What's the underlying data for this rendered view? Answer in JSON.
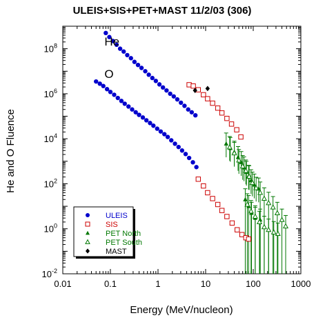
{
  "chart_data": {
    "type": "scatter",
    "title": "ULEIS+SIS+PET+MAST 11/2/03 (306)",
    "xlabel": "Energy (MeV/nucleon)",
    "ylabel": "He and O Fluence",
    "x_scale": "log",
    "y_scale": "log",
    "xlim": [
      0.01,
      1000
    ],
    "ylim": [
      0.01,
      1000000000
    ],
    "x_ticks": [
      {
        "value": 0.01,
        "label": "0.01"
      },
      {
        "value": 0.1,
        "label": "0.1"
      },
      {
        "value": 1,
        "label": "1"
      },
      {
        "value": 10,
        "label": "10"
      },
      {
        "value": 100,
        "label": "100"
      },
      {
        "value": 1000,
        "label": "1000"
      }
    ],
    "y_ticks": [
      {
        "value": 0.01,
        "base": "10",
        "exp": "-2"
      },
      {
        "value": 1,
        "base": "10",
        "exp": "0"
      },
      {
        "value": 100,
        "base": "10",
        "exp": "2"
      },
      {
        "value": 10000,
        "base": "10",
        "exp": "4"
      },
      {
        "value": 1000000,
        "base": "10",
        "exp": "6"
      },
      {
        "value": 100000000,
        "base": "10",
        "exp": "8"
      }
    ],
    "annotations": [
      {
        "text": "He",
        "x": 0.075,
        "y": 140000000
      },
      {
        "text": "O",
        "x": 0.075,
        "y": 5000000
      }
    ],
    "legend": {
      "position": "bottom-left"
    },
    "series": [
      {
        "name": "ULEIS",
        "color": "#0000cc",
        "marker": "filled-circle",
        "points": [
          [
            0.08,
            500000000
          ],
          [
            0.095,
            330000000
          ],
          [
            0.113,
            220000000
          ],
          [
            0.135,
            150000000
          ],
          [
            0.16,
            100000000
          ],
          [
            0.19,
            75000000
          ],
          [
            0.226,
            52000000
          ],
          [
            0.27,
            38000000
          ],
          [
            0.32,
            26000000
          ],
          [
            0.38,
            19000000
          ],
          [
            0.45,
            14000000
          ],
          [
            0.54,
            10000000
          ],
          [
            0.64,
            7000000
          ],
          [
            0.76,
            5000000
          ],
          [
            0.9,
            3700000
          ],
          [
            1.07,
            2600000
          ],
          [
            1.27,
            1900000
          ],
          [
            1.51,
            1400000
          ],
          [
            1.8,
            1000000
          ],
          [
            2.14,
            760000
          ],
          [
            2.54,
            560000
          ],
          [
            3.03,
            400000
          ],
          [
            3.6,
            290000
          ],
          [
            4.3,
            200000
          ],
          [
            5.1,
            150000
          ],
          [
            6.1,
            110000
          ],
          [
            0.05,
            3500000
          ],
          [
            0.06,
            2800000
          ],
          [
            0.071,
            2200000
          ],
          [
            0.085,
            1600000
          ],
          [
            0.1,
            1200000
          ],
          [
            0.12,
            900000
          ],
          [
            0.143,
            650000
          ],
          [
            0.17,
            480000
          ],
          [
            0.2,
            360000
          ],
          [
            0.24,
            270000
          ],
          [
            0.286,
            200000
          ],
          [
            0.34,
            150000
          ],
          [
            0.4,
            115000
          ],
          [
            0.48,
            88000
          ],
          [
            0.57,
            66000
          ],
          [
            0.68,
            50000
          ],
          [
            0.8,
            38000
          ],
          [
            0.96,
            28000
          ],
          [
            1.14,
            21000
          ],
          [
            1.36,
            16000
          ],
          [
            1.6,
            12000
          ],
          [
            1.9,
            8500
          ],
          [
            2.27,
            6000
          ],
          [
            2.7,
            4300
          ],
          [
            3.2,
            3000
          ],
          [
            3.8,
            2100
          ],
          [
            4.5,
            1400
          ],
          [
            5.4,
            900
          ],
          [
            6.4,
            550
          ]
        ]
      },
      {
        "name": "SIS",
        "color": "#cc0000",
        "marker": "open-square",
        "points": [
          [
            4.5,
            2500000
          ],
          [
            5.5,
            2200000
          ],
          [
            7,
            1500000
          ],
          [
            9,
            900000
          ],
          [
            11,
            600000
          ],
          [
            14,
            380000
          ],
          [
            18,
            230000
          ],
          [
            22,
            140000
          ],
          [
            28,
            80000
          ],
          [
            35,
            45000
          ],
          [
            45,
            25000
          ],
          [
            55,
            12000
          ],
          [
            7,
            160
          ],
          [
            9,
            80
          ],
          [
            11,
            40
          ],
          [
            14,
            22
          ],
          [
            18,
            12
          ],
          [
            22,
            6.5
          ],
          [
            28,
            3.5
          ],
          [
            36,
            1.8
          ],
          [
            46,
            0.9
          ],
          [
            58,
            0.55
          ],
          [
            70,
            0.4
          ],
          [
            80,
            0.35
          ]
        ]
      },
      {
        "name": "PET North",
        "color": "#007700",
        "marker": "filled-triangle",
        "points": [
          [
            27,
            6000
          ],
          [
            33,
            3800
          ],
          [
            40,
            2600
          ],
          [
            48,
            1500
          ],
          [
            56,
            900
          ],
          [
            64,
            520
          ],
          [
            72,
            330
          ],
          [
            80,
            220
          ],
          [
            90,
            140
          ],
          [
            105,
            90
          ],
          [
            130,
            60
          ],
          [
            68,
            20
          ],
          [
            80,
            10
          ],
          [
            92,
            5
          ],
          [
            110,
            3
          ],
          [
            140,
            2.5
          ]
        ]
      },
      {
        "name": "PET South",
        "color": "#007700",
        "marker": "open-triangle",
        "points": [
          [
            32,
            4200
          ],
          [
            40,
            2300
          ],
          [
            50,
            1100
          ],
          [
            60,
            600
          ],
          [
            70,
            380
          ],
          [
            82,
            210
          ],
          [
            96,
            110
          ],
          [
            115,
            65
          ],
          [
            140,
            40
          ],
          [
            170,
            22
          ],
          [
            210,
            14
          ],
          [
            260,
            9
          ],
          [
            320,
            5
          ],
          [
            400,
            2.5
          ],
          [
            480,
            1.3
          ],
          [
            75,
            12
          ],
          [
            90,
            6
          ],
          [
            110,
            3.5
          ],
          [
            135,
            2
          ],
          [
            170,
            1.2
          ],
          [
            210,
            0.9
          ],
          [
            270,
            0.7
          ],
          [
            330,
            0.6
          ]
        ]
      },
      {
        "name": "MAST",
        "color": "#000000",
        "marker": "filled-diamond",
        "points": [
          [
            6,
            1400000
          ],
          [
            11,
            1700000
          ]
        ]
      }
    ]
  }
}
